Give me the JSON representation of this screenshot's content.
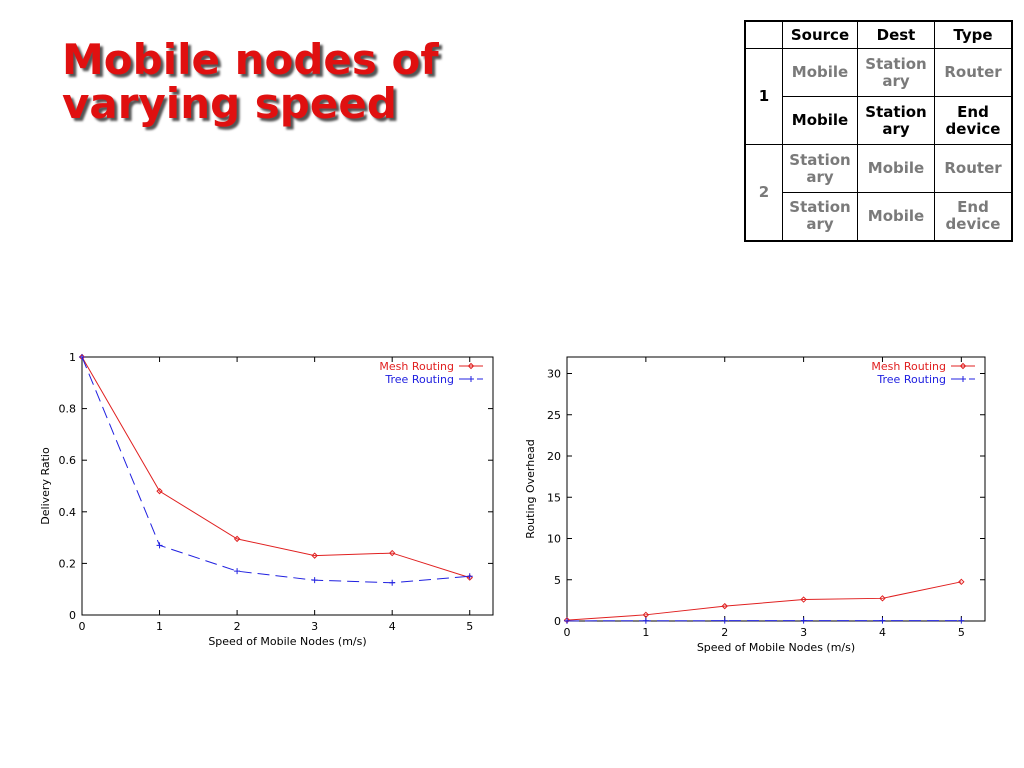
{
  "title": {
    "line1": "Mobile nodes of",
    "line2": "varying speed"
  },
  "table": {
    "headers": [
      "",
      "Source",
      "Dest",
      "Type"
    ],
    "groups": [
      {
        "label": "1",
        "rows": [
          {
            "source": "Mobile",
            "dest": "Stationary",
            "type": "Router",
            "style": "gray"
          },
          {
            "source": "Mobile",
            "dest": "Stationary",
            "type": "End device",
            "style": "black"
          }
        ]
      },
      {
        "label": "2",
        "rows": [
          {
            "source": "Stationary",
            "dest": "Mobile",
            "type": "Router",
            "style": "gray"
          },
          {
            "source": "Stationary",
            "dest": "Mobile",
            "type": "End device",
            "style": "gray"
          }
        ]
      }
    ]
  },
  "colors": {
    "mesh": "#e02020",
    "tree": "#2020e0",
    "title": "#e01010"
  },
  "chart_data": [
    {
      "type": "line",
      "title": "",
      "xlabel": "Speed of Mobile Nodes (m/s)",
      "ylabel": "Delivery Ratio",
      "x": [
        0,
        1,
        2,
        3,
        4,
        5
      ],
      "xlim": [
        0,
        5.3
      ],
      "ylim": [
        0,
        1
      ],
      "xticks": [
        0,
        1,
        2,
        3,
        4,
        5
      ],
      "yticks": [
        0,
        0.2,
        0.4,
        0.6,
        0.8,
        1
      ],
      "ytick_labels": [
        "0",
        "0.2",
        "0.4",
        "0.6",
        "0.8",
        "1"
      ],
      "legend_position": "top-right",
      "grid": false,
      "series": [
        {
          "name": "Mesh Routing",
          "values": [
            1.0,
            0.48,
            0.295,
            0.23,
            0.24,
            0.145
          ],
          "style": "solid",
          "marker": "diamond",
          "color_key": "mesh"
        },
        {
          "name": "Tree Routing",
          "values": [
            1.0,
            0.27,
            0.17,
            0.135,
            0.125,
            0.15
          ],
          "style": "dashed",
          "marker": "plus",
          "color_key": "tree"
        }
      ]
    },
    {
      "type": "line",
      "title": "",
      "xlabel": "Speed of Mobile Nodes (m/s)",
      "ylabel": "Routing Overhead",
      "x": [
        0,
        1,
        2,
        3,
        4,
        5
      ],
      "xlim": [
        0,
        5.3
      ],
      "ylim": [
        0,
        32
      ],
      "xticks": [
        0,
        1,
        2,
        3,
        4,
        5
      ],
      "yticks": [
        0,
        5,
        10,
        15,
        20,
        25,
        30
      ],
      "ytick_labels": [
        "0",
        "5",
        "10",
        "15",
        "20",
        "25",
        "30"
      ],
      "legend_position": "top-right",
      "grid": false,
      "series": [
        {
          "name": "Mesh Routing",
          "values": [
            0.1,
            0.75,
            1.8,
            2.6,
            2.75,
            4.75
          ],
          "style": "solid",
          "marker": "diamond",
          "color_key": "mesh"
        },
        {
          "name": "Tree Routing",
          "values": [
            0.02,
            0.03,
            0.04,
            0.04,
            0.04,
            0.05
          ],
          "style": "dashed",
          "marker": "plus",
          "color_key": "tree"
        }
      ]
    }
  ]
}
